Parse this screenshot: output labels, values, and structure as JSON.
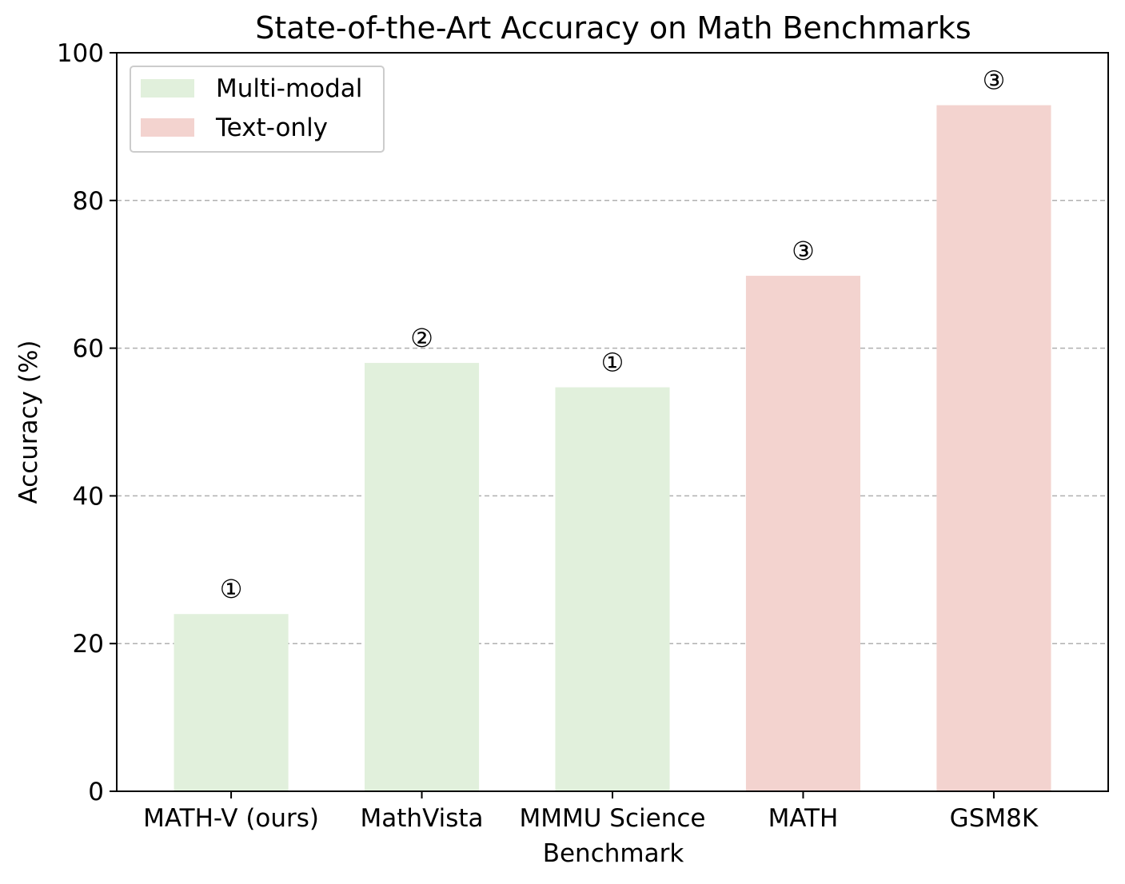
{
  "chart_data": {
    "type": "bar",
    "title": "State-of-the-Art Accuracy on Math Benchmarks",
    "xlabel": "Benchmark",
    "ylabel": "Accuracy (%)",
    "ylim": [
      0,
      100
    ],
    "yticks": [
      0,
      20,
      40,
      60,
      80,
      100
    ],
    "grid": "y, dashed",
    "legend_position": "top-left",
    "categories": [
      "MATH-V (ours)",
      "MathVista",
      "MMMU Science",
      "MATH",
      "GSM8K"
    ],
    "values": [
      24,
      58,
      54.7,
      69.8,
      92.9
    ],
    "groups": [
      "Multi-modal",
      "Multi-modal",
      "Multi-modal",
      "Text-only",
      "Text-only"
    ],
    "annotations": [
      "①",
      "②",
      "①",
      "③",
      "③"
    ],
    "series": [
      {
        "name": "Multi-modal",
        "color": "#e1f0dc"
      },
      {
        "name": "Text-only",
        "color": "#f3d3cf"
      }
    ],
    "colors": {
      "grid": "#b0b0b0",
      "axis": "#000000"
    }
  }
}
